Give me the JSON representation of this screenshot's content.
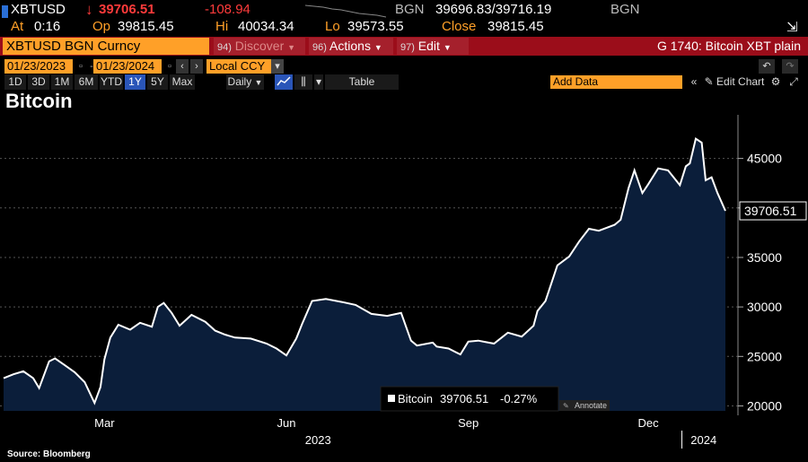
{
  "quote": {
    "ticker": "XBTUSD",
    "arrow": "↓",
    "last": "39706.51",
    "change": "-108.94",
    "source": "BGN",
    "bid_ask": "39696.83/39716.19",
    "source2": "BGN",
    "at_label": "At",
    "at_value": "0:16",
    "op_label": "Op",
    "op_value": "39815.45",
    "hi_label": "Hi",
    "hi_value": "40034.34",
    "lo_label": "Lo",
    "lo_value": "39573.55",
    "close_label": "Close",
    "close_value": "39815.45"
  },
  "menubar": {
    "security": "XBTUSD BGN Curncy",
    "discover_num": "94)",
    "discover": "Discover",
    "actions_num": "96)",
    "actions": "Actions",
    "edit_num": "97)",
    "edit": "Edit",
    "graph_title": "G 1740: Bitcoin XBT plain"
  },
  "datebar": {
    "start_date": "01/23/2023",
    "end_date": "01/23/2024",
    "currency": "Local CCY"
  },
  "toolbar": {
    "periods": [
      "1D",
      "3D",
      "1M",
      "6M",
      "YTD",
      "1Y",
      "5Y",
      "Max"
    ],
    "selected_period": "1Y",
    "frequency": "Daily",
    "table": "Table",
    "add_data": "Add Data",
    "edit_chart": "Edit Chart"
  },
  "chart_data": {
    "type": "area",
    "title": "Bitcoin",
    "source": "Source: Bloomberg",
    "y_ticks": [
      20000,
      25000,
      30000,
      35000,
      40000,
      45000
    ],
    "ylim": [
      19500,
      48500
    ],
    "x_ticks": [
      "Mar",
      "Jun",
      "Sep",
      "Dec"
    ],
    "x_years": [
      "2023",
      "2024"
    ],
    "last_label": "39706.51",
    "legend": {
      "name": "Bitcoin",
      "value": "39706.51",
      "change": "-0.27%"
    },
    "annotate": "Annotate",
    "series": [
      {
        "name": "Bitcoin",
        "color": "#ffffff",
        "fill": "#0b1e3a",
        "x": [
          "2023-01-23",
          "2023-01-28",
          "2023-02-02",
          "2023-02-07",
          "2023-02-10",
          "2023-02-15",
          "2023-02-18",
          "2023-02-23",
          "2023-02-28",
          "2023-03-05",
          "2023-03-10",
          "2023-03-13",
          "2023-03-15",
          "2023-03-18",
          "2023-03-22",
          "2023-03-28",
          "2023-04-02",
          "2023-04-08",
          "2023-04-11",
          "2023-04-14",
          "2023-04-18",
          "2023-04-22",
          "2023-04-28",
          "2023-05-05",
          "2023-05-10",
          "2023-05-15",
          "2023-05-20",
          "2023-05-28",
          "2023-06-05",
          "2023-06-10",
          "2023-06-15",
          "2023-06-20",
          "2023-06-23",
          "2023-06-28",
          "2023-07-05",
          "2023-07-13",
          "2023-07-20",
          "2023-07-28",
          "2023-08-05",
          "2023-08-12",
          "2023-08-17",
          "2023-08-20",
          "2023-08-28",
          "2023-08-30",
          "2023-09-05",
          "2023-09-11",
          "2023-09-15",
          "2023-09-20",
          "2023-09-28",
          "2023-10-05",
          "2023-10-12",
          "2023-10-18",
          "2023-10-20",
          "2023-10-24",
          "2023-10-30",
          "2023-11-05",
          "2023-11-10",
          "2023-11-15",
          "2023-11-20",
          "2023-11-28",
          "2023-12-01",
          "2023-12-05",
          "2023-12-08",
          "2023-12-12",
          "2023-12-15",
          "2023-12-20",
          "2023-12-25",
          "2023-12-31",
          "2024-01-03",
          "2024-01-05",
          "2024-01-08",
          "2024-01-11",
          "2024-01-13",
          "2024-01-16",
          "2024-01-19",
          "2024-01-23"
        ],
        "values": [
          22800,
          23200,
          23500,
          22800,
          21800,
          24500,
          24800,
          24100,
          23400,
          22400,
          20300,
          21900,
          24700,
          26900,
          28200,
          27700,
          28400,
          28000,
          30000,
          30400,
          29400,
          28100,
          29200,
          28500,
          27600,
          27200,
          26900,
          26800,
          26300,
          25800,
          25100,
          26800,
          28300,
          30600,
          30800,
          30500,
          30200,
          29300,
          29100,
          29400,
          26600,
          26100,
          26400,
          26000,
          25800,
          25200,
          26500,
          26600,
          26300,
          27400,
          27000,
          28100,
          29600,
          30600,
          34200,
          35100,
          36600,
          37900,
          37700,
          38300,
          38800,
          42000,
          43800,
          41500,
          42400,
          44000,
          43800,
          42300,
          44200,
          44500,
          47000,
          46600,
          42800,
          43100,
          41500,
          39706.51
        ]
      }
    ]
  }
}
